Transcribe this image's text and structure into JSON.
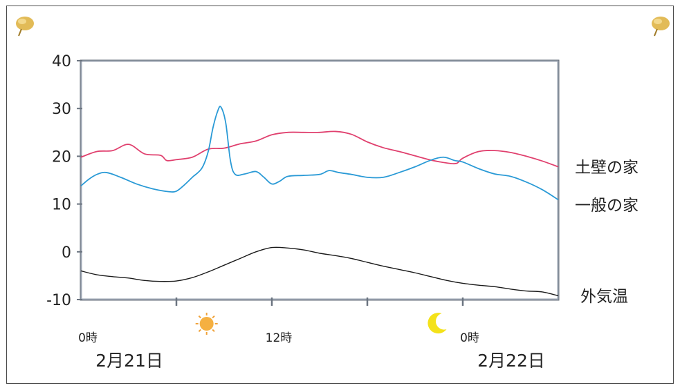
{
  "chart_data": {
    "type": "line",
    "ylim": [
      -10,
      40
    ],
    "yticks": [
      40,
      30,
      20,
      10,
      0,
      -10
    ],
    "ytick_labels": [
      "40",
      "30",
      "20",
      "10",
      "0",
      "-10"
    ],
    "x_range_hours": [
      0,
      30
    ],
    "xtick_hours": [
      6,
      12,
      18,
      24
    ],
    "xtick_labels": [
      {
        "hour": 0,
        "text": "0時"
      },
      {
        "hour": 12,
        "text": "12時"
      },
      {
        "hour": 24,
        "text": "0時"
      }
    ],
    "date_labels": [
      {
        "hour": 0,
        "text": "2月21日"
      },
      {
        "hour": 24,
        "text": "2月22日"
      }
    ],
    "markers": [
      {
        "hour": 7.9,
        "icon": "sun-icon"
      },
      {
        "hour": 22.5,
        "icon": "moon-icon"
      }
    ],
    "series": [
      {
        "name": "土壁の家",
        "color": "#e0406e",
        "points": [
          [
            0,
            19.8
          ],
          [
            1,
            21
          ],
          [
            2,
            21.2
          ],
          [
            3,
            22.5
          ],
          [
            4,
            20.5
          ],
          [
            5,
            20.2
          ],
          [
            5.4,
            19.1
          ],
          [
            6,
            19.3
          ],
          [
            7,
            19.8
          ],
          [
            8,
            21.5
          ],
          [
            9,
            21.7
          ],
          [
            10,
            22.6
          ],
          [
            11,
            23.2
          ],
          [
            12,
            24.5
          ],
          [
            13,
            25
          ],
          [
            14,
            25
          ],
          [
            15,
            25
          ],
          [
            16,
            25.2
          ],
          [
            17,
            24.6
          ],
          [
            18,
            23
          ],
          [
            19,
            21.8
          ],
          [
            20,
            21
          ],
          [
            21,
            20.1
          ],
          [
            22,
            19.2
          ],
          [
            23,
            18.6
          ],
          [
            23.6,
            18.5
          ],
          [
            24,
            19.6
          ],
          [
            25,
            21
          ],
          [
            26,
            21.2
          ],
          [
            27,
            20.8
          ],
          [
            28,
            20
          ],
          [
            29,
            19
          ],
          [
            30,
            17.8
          ]
        ]
      },
      {
        "name": "一般の家",
        "color": "#2a9ad6",
        "points": [
          [
            0,
            13.8
          ],
          [
            0.5,
            15.2
          ],
          [
            1,
            16.2
          ],
          [
            1.6,
            16.6
          ],
          [
            2.5,
            15.6
          ],
          [
            3.5,
            14.2
          ],
          [
            4.5,
            13.2
          ],
          [
            5.5,
            12.6
          ],
          [
            6,
            12.7
          ],
          [
            6.5,
            14
          ],
          [
            7,
            15.6
          ],
          [
            7.6,
            17.5
          ],
          [
            8,
            21
          ],
          [
            8.3,
            26
          ],
          [
            8.6,
            29.5
          ],
          [
            8.8,
            30.3
          ],
          [
            9.1,
            27
          ],
          [
            9.4,
            19
          ],
          [
            9.7,
            16.2
          ],
          [
            10.3,
            16.3
          ],
          [
            11,
            16.8
          ],
          [
            11.5,
            15.6
          ],
          [
            12,
            14.2
          ],
          [
            12.5,
            14.8
          ],
          [
            13,
            15.8
          ],
          [
            14,
            16
          ],
          [
            15,
            16.2
          ],
          [
            15.6,
            17
          ],
          [
            16.2,
            16.6
          ],
          [
            17,
            16.2
          ],
          [
            18,
            15.6
          ],
          [
            19,
            15.6
          ],
          [
            20,
            16.6
          ],
          [
            21,
            17.8
          ],
          [
            22,
            19.2
          ],
          [
            22.8,
            19.8
          ],
          [
            23.5,
            19.1
          ],
          [
            24,
            18.8
          ],
          [
            25,
            17.4
          ],
          [
            26,
            16.3
          ],
          [
            27,
            15.8
          ],
          [
            28,
            14.6
          ],
          [
            29,
            13
          ],
          [
            30,
            10.9
          ]
        ]
      },
      {
        "name": "外気温",
        "color": "#1a1a1a",
        "points": [
          [
            0,
            -4
          ],
          [
            1,
            -4.8
          ],
          [
            2,
            -5.2
          ],
          [
            3,
            -5.5
          ],
          [
            4,
            -6
          ],
          [
            5,
            -6.2
          ],
          [
            6,
            -6.1
          ],
          [
            7,
            -5.4
          ],
          [
            8,
            -4.2
          ],
          [
            9,
            -2.8
          ],
          [
            10,
            -1.4
          ],
          [
            11,
            0
          ],
          [
            12,
            0.9
          ],
          [
            13,
            0.8
          ],
          [
            14,
            0.4
          ],
          [
            15,
            -0.3
          ],
          [
            16,
            -0.8
          ],
          [
            17,
            -1.4
          ],
          [
            18,
            -2.2
          ],
          [
            19,
            -3
          ],
          [
            20,
            -3.7
          ],
          [
            21,
            -4.4
          ],
          [
            22,
            -5.2
          ],
          [
            23,
            -6
          ],
          [
            24,
            -6.6
          ],
          [
            25,
            -7
          ],
          [
            26,
            -7.3
          ],
          [
            27,
            -7.8
          ],
          [
            28,
            -8.2
          ],
          [
            29,
            -8.4
          ],
          [
            30,
            -9.2
          ]
        ]
      }
    ]
  }
}
